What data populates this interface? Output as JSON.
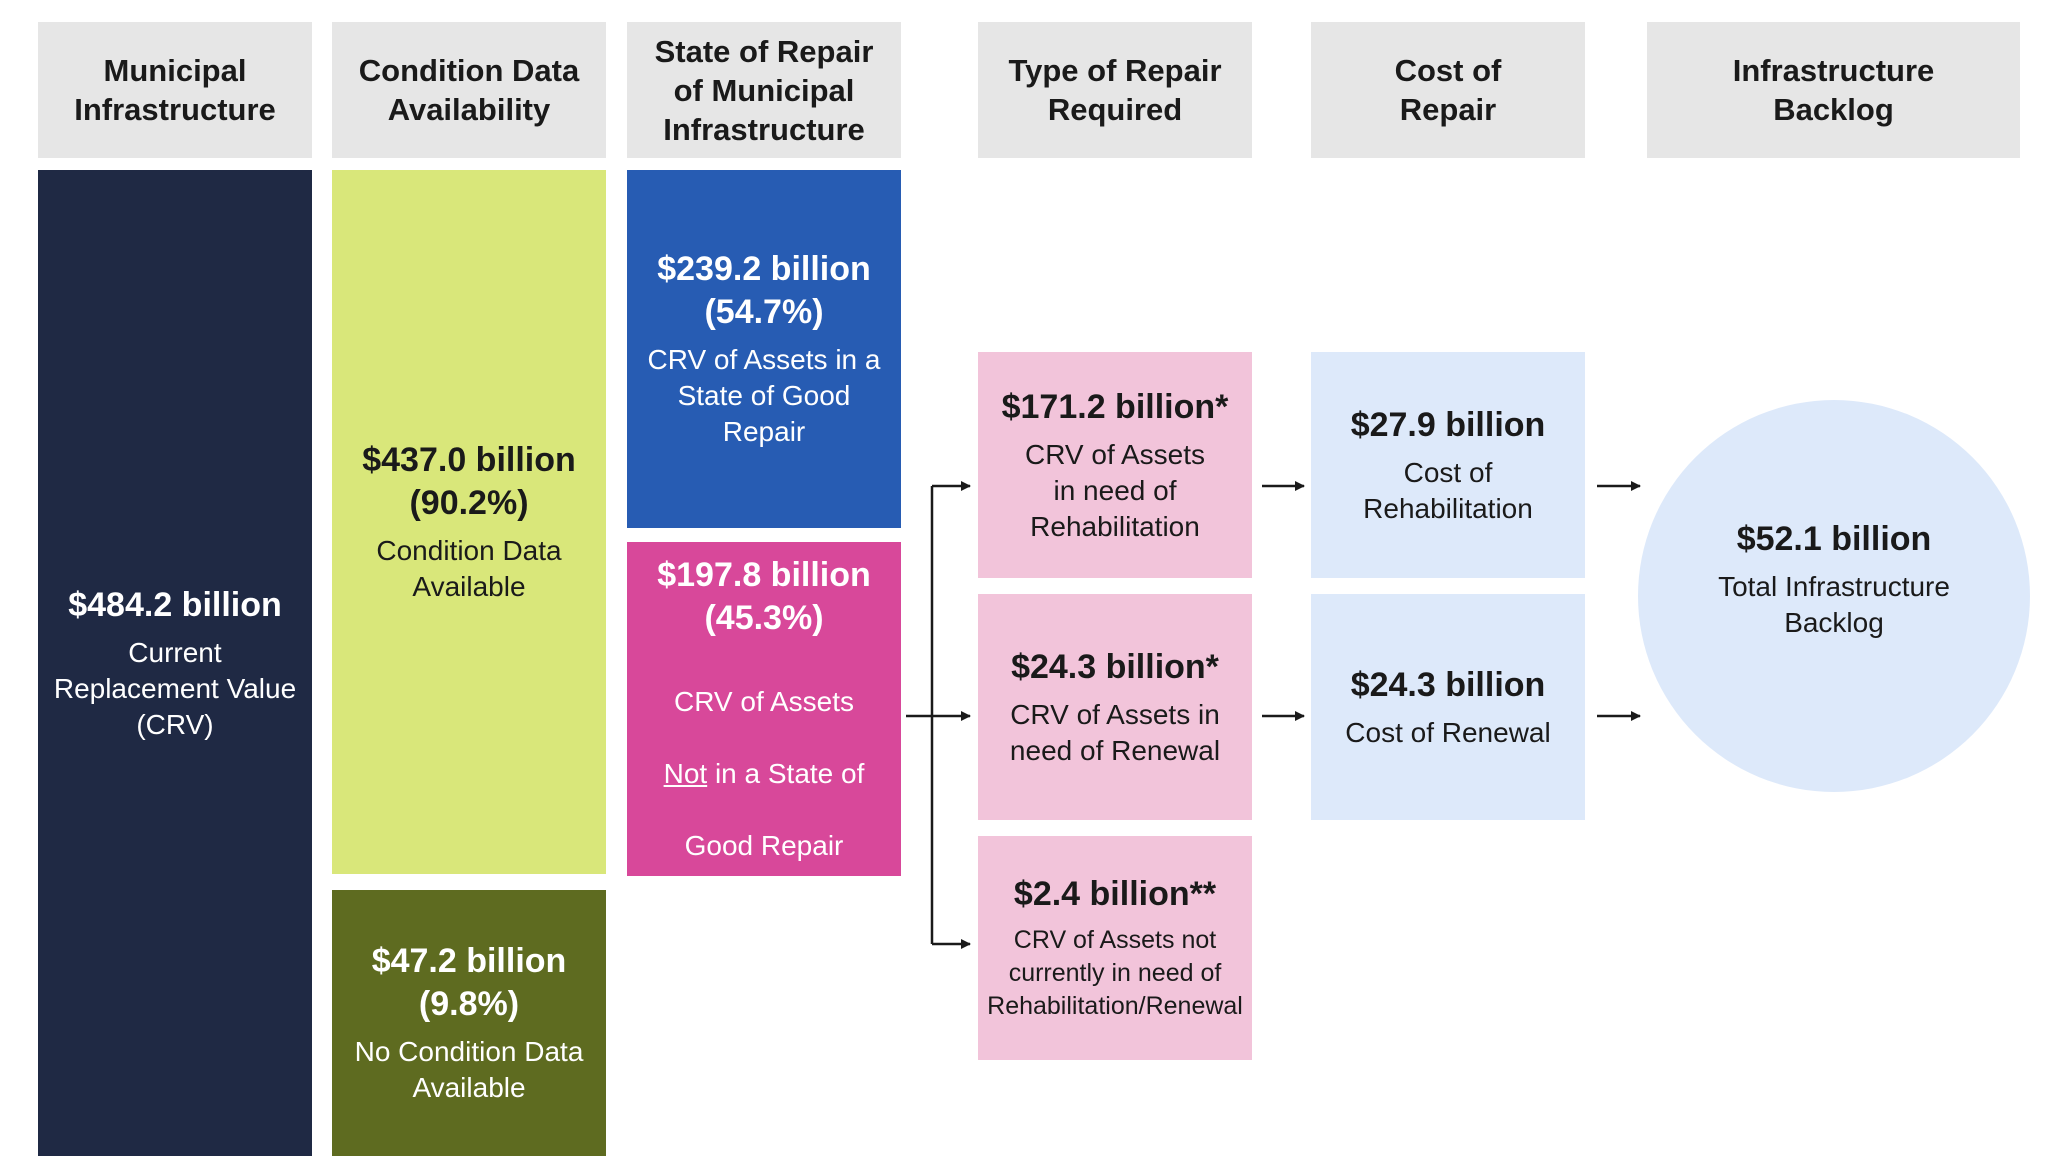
{
  "headers": {
    "col1": "Municipal\nInfrastructure",
    "col2": "Condition Data\nAvailability",
    "col3": "State of Repair\nof Municipal\nInfrastructure",
    "col4": "Type of Repair\nRequired",
    "col5": "Cost of\nRepair",
    "col6": "Infrastructure\nBacklog"
  },
  "crv": {
    "amount": "$484.2 billion",
    "label": "Current\nReplacement Value\n(CRV)"
  },
  "condition_available": {
    "amount": "$437.0 billion\n(90.2%)",
    "label": "Condition Data\nAvailable"
  },
  "condition_none": {
    "amount": "$47.2 billion\n(9.8%)",
    "label": "No Condition Data\nAvailable"
  },
  "good_repair": {
    "amount": "$239.2 billion\n(54.7%)",
    "label": "CRV of Assets in a\nState of Good Repair"
  },
  "not_good_repair": {
    "amount": "$197.8 billion\n(45.3%)",
    "label_line1": "CRV of Assets",
    "label_not": "Not",
    "label_line2_rest": " in a State of",
    "label_line3": "Good Repair"
  },
  "rehab_need": {
    "amount": "$171.2 billion*",
    "label": "CRV of Assets\nin need of\nRehabilitation"
  },
  "renewal_need": {
    "amount": "$24.3 billion*",
    "label": "CRV of Assets in\nneed of Renewal"
  },
  "no_need": {
    "amount": "$2.4 billion**",
    "label": "CRV of Assets not\ncurrently in need of\nRehabilitation/Renewal"
  },
  "cost_rehab": {
    "amount": "$27.9 billion",
    "label": "Cost of\nRehabilitation"
  },
  "cost_renewal": {
    "amount": "$24.3 billion",
    "label": "Cost of Renewal"
  },
  "backlog": {
    "amount": "$52.1 billion",
    "label": "Total Infrastructure\nBacklog"
  },
  "colors": {
    "header_bg": "#e6e6e6",
    "navy": "#1f2944",
    "lime": "#d9e77a",
    "olive": "#5e6b20",
    "blue": "#275cb3",
    "magenta": "#d8489a",
    "pink": "#f2c4da",
    "lightblue": "#dde9fa"
  }
}
